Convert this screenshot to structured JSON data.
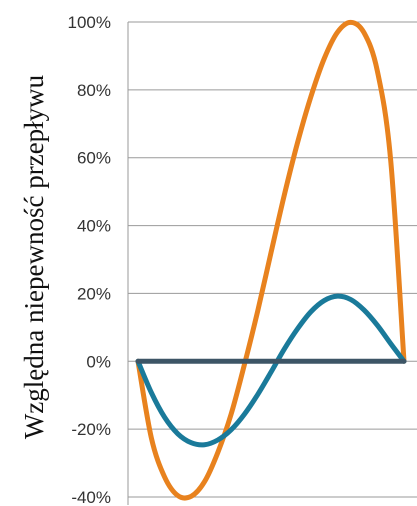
{
  "chart_data": {
    "type": "line",
    "title": "",
    "xlabel": "",
    "ylabel": "Względna niepewność przepływu",
    "ylim": [
      -40,
      100
    ],
    "y_ticks": [
      100,
      80,
      60,
      40,
      20,
      0,
      -20,
      -40
    ],
    "y_tick_labels": [
      "100%",
      "80%",
      "60%",
      "40%",
      "20%",
      "0%",
      "-20%",
      "-40%"
    ],
    "xlim": [
      0,
      1
    ],
    "grid": "horizontal",
    "legend": "none",
    "series": [
      {
        "color": "#e8821e",
        "x": [
          0,
          0.05,
          0.1,
          0.15,
          0.2,
          0.25,
          0.3,
          0.35,
          0.4,
          0.45,
          0.5,
          0.55,
          0.6,
          0.65,
          0.7,
          0.75,
          0.8,
          0.85,
          0.9,
          0.95,
          1
        ],
        "values": [
          0,
          -22.5,
          -34.1,
          -39.6,
          -39.8,
          -35.5,
          -26.9,
          -15.6,
          -1.0,
          14.8,
          32.0,
          49.0,
          64.5,
          78.0,
          89.2,
          97.0,
          99.9,
          96.8,
          85.5,
          59.2,
          0
        ]
      },
      {
        "color": "#1a7a9a",
        "x": [
          0,
          0.05,
          0.1,
          0.15,
          0.2,
          0.25,
          0.3,
          0.35,
          0.4,
          0.45,
          0.5,
          0.55,
          0.6,
          0.65,
          0.7,
          0.75,
          0.8,
          0.85,
          0.9,
          0.95,
          1
        ],
        "values": [
          0,
          -9.2,
          -16.5,
          -21.4,
          -24.0,
          -24.6,
          -23.2,
          -20.2,
          -15.6,
          -9.8,
          -3.2,
          3.6,
          9.6,
          14.6,
          17.9,
          19.2,
          18.2,
          15.1,
          10.6,
          5.2,
          0
        ]
      },
      {
        "color": "#3d5566",
        "x": [
          0,
          1
        ],
        "values": [
          0,
          0
        ]
      }
    ]
  }
}
